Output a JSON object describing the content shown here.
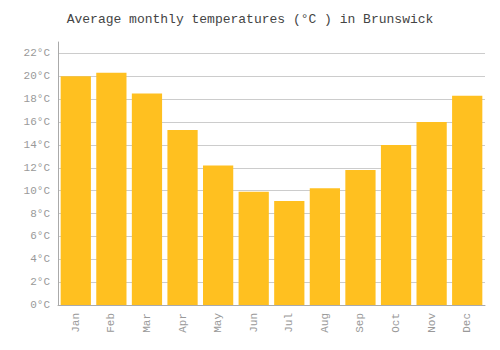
{
  "chart_data": {
    "type": "bar",
    "title": "Average monthly temperatures (°C ) in Brunswick",
    "categories": [
      "Jan",
      "Feb",
      "Mar",
      "Apr",
      "May",
      "Jun",
      "Jul",
      "Aug",
      "Sep",
      "Oct",
      "Nov",
      "Dec"
    ],
    "values": [
      20.0,
      20.3,
      18.5,
      15.3,
      12.2,
      9.9,
      9.1,
      10.2,
      11.8,
      14.0,
      16.0,
      18.3
    ],
    "color": "#FFC020",
    "ylim": [
      0,
      23
    ],
    "yticks": [
      {
        "value": 0,
        "label": "0°C"
      },
      {
        "value": 2,
        "label": "2°C"
      },
      {
        "value": 4,
        "label": "4°C"
      },
      {
        "value": 6,
        "label": "6°C"
      },
      {
        "value": 8,
        "label": "8°C"
      },
      {
        "value": 10,
        "label": "10°C"
      },
      {
        "value": 12,
        "label": "12°C"
      },
      {
        "value": 14,
        "label": "14°C"
      },
      {
        "value": 16,
        "label": "16°C"
      },
      {
        "value": 18,
        "label": "18°C"
      },
      {
        "value": 20,
        "label": "20°C"
      },
      {
        "value": 22,
        "label": "22°C"
      }
    ],
    "grid": true
  }
}
